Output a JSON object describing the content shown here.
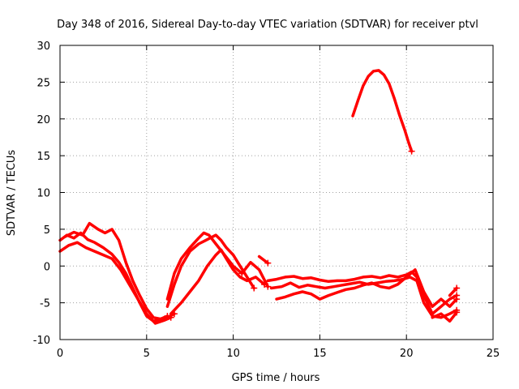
{
  "chart_data": {
    "type": "scatter",
    "title": "Day 348 of 2016, Sidereal Day-to-day VTEC variation (SDTVAR) for receiver ptvl",
    "xlabel": "GPS time / hours",
    "ylabel": "SDTVAR / TECUs",
    "xlim": [
      0,
      25
    ],
    "ylim": [
      -10,
      30
    ],
    "xticks": [
      0,
      5,
      10,
      15,
      20,
      25
    ],
    "yticks": [
      -10,
      -5,
      0,
      5,
      10,
      15,
      20,
      25,
      30
    ],
    "grid": true,
    "marker": "+",
    "color": "#ff0000",
    "series": [
      {
        "name": "track-1",
        "x": [
          0.0,
          0.4,
          0.8,
          1.2,
          1.6,
          2.0,
          2.5,
          3.0,
          3.4,
          3.8,
          4.2,
          4.6,
          5.0,
          5.4,
          5.8,
          6.2,
          6.6
        ],
        "y": [
          3.5,
          4.2,
          3.8,
          4.5,
          3.6,
          3.2,
          2.5,
          1.6,
          0.5,
          -1.0,
          -3.0,
          -5.0,
          -6.8,
          -7.5,
          -7.2,
          -7.0,
          -6.5
        ]
      },
      {
        "name": "track-2",
        "x": [
          0.0,
          0.5,
          1.0,
          1.5,
          2.0,
          2.5,
          3.0,
          3.5,
          4.0,
          4.5,
          5.0,
          5.5,
          6.0,
          6.4
        ],
        "y": [
          2.0,
          2.8,
          3.2,
          2.5,
          2.0,
          1.5,
          1.0,
          -0.5,
          -2.5,
          -4.5,
          -6.5,
          -7.8,
          -7.4,
          -7.0
        ]
      },
      {
        "name": "track-3",
        "x": [
          0.3,
          0.8,
          1.3,
          1.7,
          2.2,
          2.6,
          3.0,
          3.4,
          3.8,
          4.2,
          4.6,
          5.0,
          5.4,
          5.8,
          6.2
        ],
        "y": [
          4.0,
          4.6,
          4.2,
          5.8,
          5.0,
          4.5,
          5.0,
          3.5,
          0.5,
          -2.0,
          -4.0,
          -5.8,
          -7.0,
          -7.2,
          -6.8
        ]
      },
      {
        "name": "track-4",
        "x": [
          6.2,
          6.6,
          7.0,
          7.5,
          8.0,
          8.5,
          9.0,
          9.3,
          9.6,
          10.0,
          10.4,
          10.8,
          11.2
        ],
        "y": [
          -5.5,
          -2.5,
          0.0,
          2.0,
          3.0,
          3.6,
          4.2,
          3.5,
          2.5,
          1.5,
          0.0,
          -1.5,
          -3.0
        ]
      },
      {
        "name": "track-5",
        "x": [
          6.2,
          6.6,
          7.0,
          7.5,
          8.0,
          8.3,
          8.6,
          9.0,
          9.5,
          10.0,
          10.5
        ],
        "y": [
          -4.5,
          -1.0,
          1.0,
          2.5,
          3.8,
          4.5,
          4.2,
          3.0,
          1.5,
          0.0,
          -1.0
        ]
      },
      {
        "name": "track-6",
        "x": [
          6.4,
          7.0,
          7.5,
          8.0,
          8.5,
          9.0,
          9.3,
          9.6,
          10.0,
          10.4,
          10.8,
          11.3,
          11.8
        ],
        "y": [
          -6.5,
          -5.0,
          -3.5,
          -2.0,
          0.0,
          1.5,
          2.2,
          1.0,
          -0.5,
          -1.5,
          -2.0,
          -1.5,
          -2.5
        ]
      },
      {
        "name": "track-7",
        "x": [
          10.5,
          11.0,
          11.5,
          12.0
        ],
        "y": [
          -1.0,
          0.5,
          -0.5,
          -2.8
        ]
      },
      {
        "name": "track-8",
        "x": [
          11.5,
          12.0
        ],
        "y": [
          1.3,
          0.4
        ]
      },
      {
        "name": "track-9",
        "x": [
          12.0,
          12.5,
          13.0,
          13.5,
          14.0,
          14.5,
          15.0,
          15.5,
          16.0,
          16.5,
          17.0,
          17.5,
          18.0,
          18.5,
          19.0,
          19.5,
          20.0,
          20.3,
          20.6,
          21.0,
          21.5,
          22.0,
          22.5,
          22.9
        ],
        "y": [
          -2.0,
          -1.8,
          -1.5,
          -1.4,
          -1.7,
          -1.6,
          -1.9,
          -2.1,
          -2.0,
          -2.0,
          -1.8,
          -1.5,
          -1.4,
          -1.6,
          -1.3,
          -1.5,
          -1.2,
          -0.8,
          -1.5,
          -4.0,
          -6.5,
          -5.5,
          -4.5,
          -4.0
        ]
      },
      {
        "name": "track-10",
        "x": [
          12.2,
          12.8,
          13.3,
          13.8,
          14.3,
          14.8,
          15.3,
          15.8,
          16.3,
          16.8,
          17.3,
          17.8,
          18.3,
          18.8,
          19.3,
          19.8,
          20.2,
          20.6,
          21.0,
          21.5,
          22.0,
          22.5,
          22.9
        ],
        "y": [
          -3.0,
          -2.8,
          -2.3,
          -2.9,
          -2.6,
          -2.8,
          -3.0,
          -2.8,
          -2.6,
          -2.4,
          -2.2,
          -2.5,
          -2.3,
          -2.1,
          -2.0,
          -1.8,
          -1.5,
          -2.0,
          -5.0,
          -6.8,
          -7.0,
          -6.5,
          -6.0
        ]
      },
      {
        "name": "track-11",
        "x": [
          12.5,
          13.0,
          13.5,
          14.0,
          14.5,
          15.0,
          15.5,
          16.0,
          16.5,
          17.0,
          17.5,
          18.0,
          18.5,
          19.0,
          19.5,
          20.0,
          20.5,
          21.0,
          21.5,
          22.0,
          22.5,
          22.9
        ],
        "y": [
          -4.5,
          -4.2,
          -3.8,
          -3.5,
          -3.8,
          -4.5,
          -4.0,
          -3.6,
          -3.2,
          -3.0,
          -2.6,
          -2.3,
          -2.8,
          -3.0,
          -2.5,
          -1.5,
          -0.5,
          -3.5,
          -5.5,
          -4.5,
          -5.5,
          -4.5
        ]
      },
      {
        "name": "track-12",
        "x": [
          21.5,
          22.0,
          22.5,
          22.9
        ],
        "y": [
          -7.0,
          -6.5,
          -7.5,
          -6.3
        ]
      },
      {
        "name": "track-13",
        "x": [
          22.5,
          22.9
        ],
        "y": [
          -4.0,
          -3.0
        ]
      },
      {
        "name": "track-14",
        "x": [
          16.9,
          17.2,
          17.5,
          17.8,
          18.1,
          18.4,
          18.7,
          19.0,
          19.3,
          19.6,
          19.9,
          20.1,
          20.3
        ],
        "y": [
          20.4,
          22.5,
          24.5,
          25.8,
          26.5,
          26.6,
          26.0,
          24.8,
          22.8,
          20.5,
          18.5,
          17.0,
          15.6
        ]
      }
    ]
  }
}
